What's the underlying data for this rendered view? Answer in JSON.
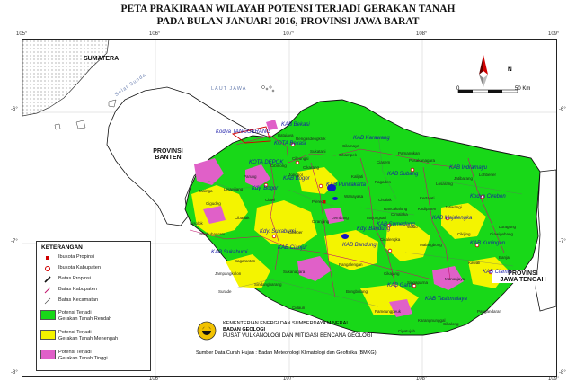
{
  "title": {
    "line1": "PETA PRAKIRAAN WILAYAH POTENSI TERJADI GERAKAN TANAH",
    "line2": "PADA BULAN JANUARI 2016, PROVINSI JAWA BARAT"
  },
  "grid": {
    "lon_ticks": [
      "105°",
      "106°",
      "107°",
      "108°",
      "109°"
    ],
    "lat_ticks": [
      "-6°",
      "-7°",
      "-8°"
    ]
  },
  "scale_bar": {
    "start": "0",
    "end": "50 Km"
  },
  "north_arrow": {
    "label": "N"
  },
  "regions": {
    "sumatera": "SUMATERA",
    "laut_jawa": "LAUT JAWA",
    "selat_sunda": "Selat Sunda",
    "banten_line1": "PROVINSI",
    "banten_line2": "BANTEN",
    "jateng_line1": "PROVINSI",
    "jateng_line2": "JAWA TENGAH"
  },
  "kabupaten_labels": [
    "Kodya TANGGERANG",
    "KAB Bekasi",
    "KAB Karawang",
    "KOTA Bekasi",
    "KOTA DEPOK",
    "KAB Bogor",
    "Kdy. Bogor",
    "KAB Purwakarta",
    "KAB Subang",
    "KAB Indramayu",
    "Kodya Cirebon",
    "KAB Majalengka",
    "KAB Sumedang",
    "Kdy. Sukabumi",
    "KAB Cianjur",
    "Kdy. Bandung",
    "KAB Bandung",
    "KAB Sukabumi",
    "KAB Kuningan",
    "KAB Ciamis",
    "KAB Garut",
    "KAB Tasikmalaya"
  ],
  "kecamatan_labels": [
    "Cilamaya",
    "Cikampek",
    "Pamanukan",
    "Pusakanagara",
    "Jatibarang",
    "Lohbener",
    "Losarang",
    "Kertajati",
    "Jatiwangi",
    "Kadipaten",
    "Cimalaka",
    "Tanjungsari",
    "Lembang",
    "Cicalengka",
    "Pangalengan",
    "Cikajang",
    "Pameungpeuk",
    "Cidaun",
    "Sindangbarang",
    "Cibinong",
    "Jonggol",
    "Cileungsi",
    "Ciawi",
    "Cibadak",
    "Pelabuhanratu",
    "Jampangkulon",
    "Sagaranten",
    "Cibeber",
    "Sukanagara",
    "Ciranjang",
    "Plered",
    "Wanayasa",
    "Ciasem",
    "Pagaden",
    "Kalijati",
    "Cisalak",
    "Rancakalong",
    "Wado",
    "Malangbong",
    "Singaparna",
    "Manonjaya",
    "Banjar",
    "Pangandaran",
    "Kawali",
    "Cikijing",
    "Luragung",
    "Ciawigebang",
    "Rengasdengklok",
    "Batujaya",
    "Sukatani",
    "Cikarang",
    "Parung",
    "Leuwiliang",
    "Jasinga",
    "Cigudeg",
    "Cisolok",
    "Surade",
    "Cikalong",
    "Karangnunggal",
    "Cipatujah",
    "Bungbulang"
  ],
  "legend": {
    "title": "KETERANGAN",
    "items": [
      {
        "label": "Ibukota Propinsi"
      },
      {
        "label": "Ibukota Kabupaten"
      },
      {
        "label": "Batas Propinsi"
      },
      {
        "label": "Batas Kabupaten"
      },
      {
        "label": "Batas Kecamatan"
      },
      {
        "label_line1": "Potensi Terjadi",
        "label_line2": "Gerakan Tanah Rendah",
        "color": "#18d818"
      },
      {
        "label_line1": "Potensi Terjadi",
        "label_line2": "Gerakan Tanah Menengah",
        "color": "#f4f400"
      },
      {
        "label_line1": "Potensi Terjadi",
        "label_line2": "Gerakan Tanah Tinggi",
        "color": "#e060c8"
      }
    ]
  },
  "institution": {
    "line1": "KEMENTERIAN ENERGI DAN SUMBERDAYA MINERAL",
    "line2": "BADAN GEOLOGI",
    "line3": "PUSAT VULKANOLOGI DAN MITIGASI BENCANA GEOLOGI"
  },
  "source": "Sumber Data Curah Hujan : Badan Meteorologi Klimatologi dan Geofisika (BMKG)",
  "colors": {
    "low": "#18d818",
    "medium": "#f4f400",
    "high": "#e060c8",
    "province_border": "#111111",
    "kabupaten_border": "#c0146c",
    "kabupaten_label": "#1a1aa8",
    "water_bodies": "#1414c8"
  }
}
